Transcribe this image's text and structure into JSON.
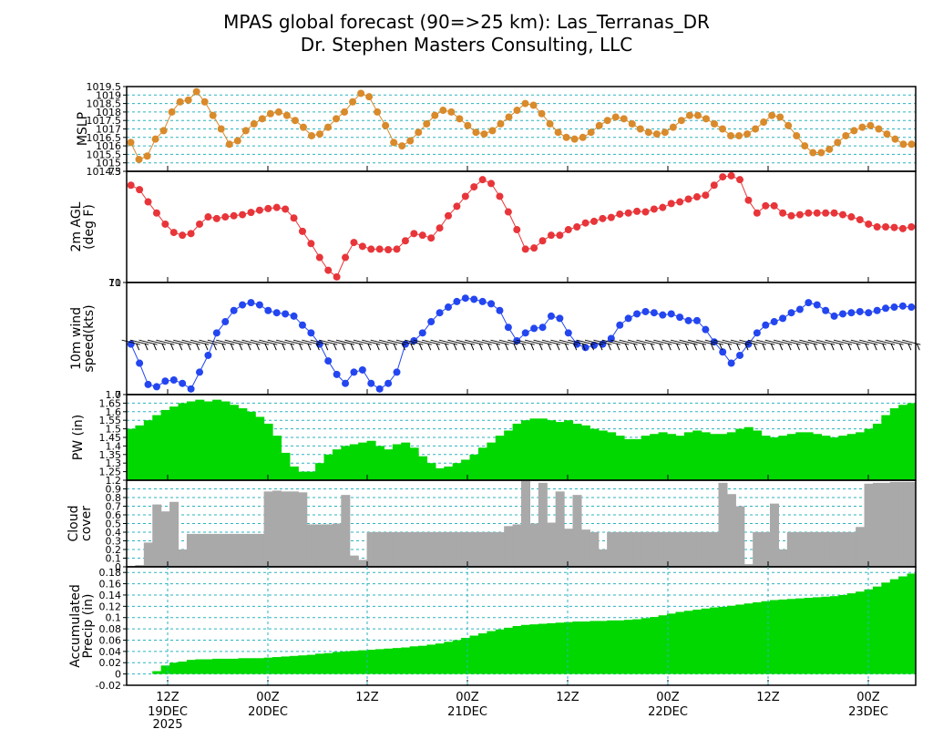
{
  "title": {
    "line1": "MPAS global forecast (90=>25 km): Las_Terranas_DR",
    "line2": "Dr. Stephen Masters Consulting, LLC"
  },
  "time_axis": {
    "ticks": [
      {
        "label": "12Z",
        "sub": "19DEC",
        "sub2": "2025",
        "x": 184
      },
      {
        "label": "00Z",
        "sub": "20DEC",
        "sub2": "",
        "x": 294
      },
      {
        "label": "12Z",
        "sub": "",
        "sub2": "",
        "x": 403
      },
      {
        "label": "00Z",
        "sub": "21DEC",
        "sub2": "",
        "x": 513
      },
      {
        "label": "12Z",
        "sub": "",
        "sub2": "",
        "x": 623
      },
      {
        "label": "00Z",
        "sub": "22DEC",
        "sub2": "",
        "x": 733
      },
      {
        "label": "12Z",
        "sub": "",
        "sub2": "",
        "x": 843
      },
      {
        "label": "00Z",
        "sub": "23DEC",
        "sub2": "",
        "x": 953
      }
    ]
  },
  "colors": {
    "mslp": "#d98a2b",
    "temp": "#e8353a",
    "wind": "#2346f0",
    "pw_fill": "#00d800",
    "cloud_fill": "#a9a9a9",
    "precip_fill": "#00d800",
    "grid": "#2bb3c0"
  },
  "chart_data": [
    {
      "type": "line",
      "panel": "mslp",
      "ylabel": "MSLP",
      "ylim": [
        1014.5,
        1019.5
      ],
      "yticks": [
        "1014.5",
        "1015",
        "1015.5",
        "1016",
        "1016.5",
        "1017",
        "1017.5",
        "1018",
        "1018.5",
        "1019",
        "1019.5"
      ],
      "x_hours": [
        0,
        3,
        6,
        9,
        12,
        15,
        18,
        21,
        24,
        27,
        30,
        33,
        36,
        39,
        42,
        45,
        48,
        51,
        54,
        57,
        60,
        63,
        66,
        69,
        72,
        75,
        78,
        81,
        84,
        87,
        90,
        93,
        96,
        99,
        102,
        105,
        108,
        111,
        114,
        117,
        120,
        123,
        126,
        129,
        132,
        135,
        138,
        141,
        144,
        147,
        150,
        153,
        156,
        159,
        162,
        165,
        168,
        171,
        174,
        177,
        180,
        183,
        186,
        189,
        192,
        195,
        198,
        201,
        204,
        207,
        210,
        213,
        216,
        219,
        222,
        225,
        228,
        231,
        234,
        237,
        240,
        243,
        246,
        249,
        252,
        255,
        258,
        261,
        264,
        267,
        270,
        273,
        276,
        279,
        282,
        285
      ],
      "values": [
        1016.2,
        1015.2,
        1015.4,
        1016.4,
        1016.9,
        1018.0,
        1018.6,
        1018.7,
        1019.2,
        1018.6,
        1017.8,
        1017.0,
        1016.1,
        1016.3,
        1016.9,
        1017.3,
        1017.6,
        1017.9,
        1018.0,
        1017.8,
        1017.5,
        1017.1,
        1016.6,
        1016.7,
        1017.1,
        1017.6,
        1018.0,
        1018.6,
        1019.1,
        1018.9,
        1018.0,
        1017.2,
        1016.2,
        1016.0,
        1016.3,
        1016.8,
        1017.3,
        1017.8,
        1018.1,
        1018.0,
        1017.6,
        1017.2,
        1016.8,
        1016.7,
        1016.9,
        1017.3,
        1017.7,
        1018.1,
        1018.5,
        1018.4,
        1017.9,
        1017.3,
        1016.8,
        1016.5,
        1016.4,
        1016.5,
        1016.8,
        1017.2,
        1017.5,
        1017.7,
        1017.6,
        1017.3,
        1017.0,
        1016.8,
        1016.7,
        1016.8,
        1017.1,
        1017.5,
        1017.8,
        1017.8,
        1017.6,
        1017.3,
        1017.0,
        1016.6,
        1016.6,
        1016.7,
        1017.0,
        1017.4,
        1017.8,
        1017.7,
        1017.2,
        1016.6,
        1016.0,
        1015.6,
        1015.6,
        1015.8,
        1016.2,
        1016.6,
        1016.9,
        1017.1,
        1017.2,
        1017.0,
        1016.7,
        1016.4,
        1016.1,
        1016.1
      ]
    },
    {
      "type": "line",
      "panel": "temperature",
      "ylabel": "2m AGL (deg F)",
      "ylim": [
        71,
        73
      ],
      "yticks": [
        "71",
        "73"
      ],
      "values": [
        72.75,
        72.67,
        72.45,
        72.25,
        72.05,
        71.9,
        71.85,
        71.88,
        72.05,
        72.18,
        72.15,
        72.18,
        72.2,
        72.22,
        72.26,
        72.3,
        72.33,
        72.35,
        72.32,
        72.16,
        71.92,
        71.7,
        71.45,
        71.22,
        71.1,
        71.45,
        71.72,
        71.65,
        71.6,
        71.6,
        71.59,
        71.6,
        71.75,
        71.88,
        71.85,
        71.8,
        71.98,
        72.2,
        72.37,
        72.55,
        72.72,
        72.85,
        72.78,
        72.55,
        72.27,
        71.95,
        71.6,
        71.62,
        71.75,
        71.85,
        71.85,
        71.95,
        72.0,
        72.07,
        72.1,
        72.15,
        72.17,
        72.23,
        72.25,
        72.28,
        72.27,
        72.32,
        72.35,
        72.42,
        72.45,
        72.5,
        72.54,
        72.57,
        72.75,
        72.9,
        72.92,
        72.85,
        72.48,
        72.25,
        72.38,
        72.38,
        72.25,
        72.2,
        72.22,
        72.25,
        72.25,
        72.25,
        72.25,
        72.22,
        72.18,
        72.13,
        72.05,
        72.0,
        72.0,
        71.99,
        71.97,
        72.0
      ]
    },
    {
      "type": "line",
      "panel": "wind",
      "ylabel": "10m wind speed(kts)",
      "ylim": [
        0,
        10
      ],
      "yticks": [
        "0",
        "10"
      ],
      "values": [
        4.5,
        2.8,
        0.9,
        0.7,
        1.2,
        1.3,
        1.0,
        0.5,
        2.0,
        3.5,
        5.5,
        6.5,
        7.5,
        8.0,
        8.2,
        8.0,
        7.5,
        7.3,
        7.2,
        7.0,
        6.2,
        5.5,
        4.5,
        3.0,
        1.8,
        1.0,
        2.0,
        2.2,
        1.0,
        0.5,
        1.0,
        2.0,
        4.5,
        4.8,
        5.5,
        6.5,
        7.3,
        7.8,
        8.3,
        8.6,
        8.5,
        8.3,
        8.1,
        7.5,
        6.0,
        4.8,
        5.5,
        5.9,
        6.0,
        7.0,
        6.8,
        5.5,
        4.5,
        4.2,
        4.4,
        4.5,
        5.0,
        6.2,
        6.8,
        7.2,
        7.4,
        7.3,
        7.1,
        7.2,
        6.9,
        6.6,
        6.6,
        5.8,
        4.7,
        3.8,
        2.8,
        3.5,
        4.5,
        5.5,
        6.2,
        6.5,
        6.8,
        7.3,
        7.6,
        8.2,
        8.0,
        7.5,
        7.0,
        7.2,
        7.3,
        7.4,
        7.3,
        7.5,
        7.7,
        7.8,
        7.9,
        7.8
      ]
    },
    {
      "type": "area",
      "panel": "pw",
      "ylabel": "PW (in)",
      "ylim": [
        1.2,
        1.7
      ],
      "yticks": [
        "1.2",
        "1.25",
        "1.3",
        "1.35",
        "1.4",
        "1.45",
        "1.5",
        "1.55",
        "1.6",
        "1.65",
        "1.7"
      ],
      "values": [
        1.5,
        1.52,
        1.55,
        1.58,
        1.61,
        1.63,
        1.65,
        1.66,
        1.67,
        1.66,
        1.67,
        1.66,
        1.64,
        1.62,
        1.6,
        1.57,
        1.53,
        1.46,
        1.36,
        1.28,
        1.25,
        1.25,
        1.3,
        1.35,
        1.38,
        1.4,
        1.41,
        1.42,
        1.43,
        1.4,
        1.38,
        1.41,
        1.42,
        1.39,
        1.34,
        1.3,
        1.27,
        1.28,
        1.3,
        1.32,
        1.35,
        1.39,
        1.42,
        1.46,
        1.49,
        1.53,
        1.55,
        1.56,
        1.56,
        1.55,
        1.54,
        1.55,
        1.53,
        1.52,
        1.5,
        1.49,
        1.48,
        1.46,
        1.44,
        1.44,
        1.46,
        1.47,
        1.48,
        1.47,
        1.46,
        1.48,
        1.49,
        1.48,
        1.47,
        1.47,
        1.48,
        1.5,
        1.51,
        1.49,
        1.46,
        1.45,
        1.46,
        1.47,
        1.48,
        1.48,
        1.47,
        1.46,
        1.45,
        1.46,
        1.47,
        1.48,
        1.5,
        1.53,
        1.58,
        1.62,
        1.64,
        1.65
      ]
    },
    {
      "type": "bar",
      "panel": "cloud",
      "ylabel": "Cloud cover",
      "ylim": [
        0,
        1.0
      ],
      "yticks": [
        "0",
        "0.1",
        "0.2",
        "0.3",
        "0.4",
        "0.5",
        "0.6",
        "0.7",
        "0.8",
        "0.9"
      ],
      "values": [
        0.0,
        0.02,
        0.28,
        0.72,
        0.64,
        0.75,
        0.2,
        0.38,
        0.38,
        0.38,
        0.38,
        0.38,
        0.38,
        0.38,
        0.38,
        0.38,
        0.87,
        0.88,
        0.87,
        0.87,
        0.86,
        0.49,
        0.49,
        0.49,
        0.5,
        0.83,
        0.13,
        0.08,
        0.4,
        0.4,
        0.4,
        0.4,
        0.4,
        0.4,
        0.4,
        0.4,
        0.4,
        0.4,
        0.4,
        0.4,
        0.4,
        0.4,
        0.4,
        0.4,
        0.47,
        0.49,
        0.99,
        0.5,
        0.97,
        0.51,
        0.87,
        0.44,
        0.83,
        0.43,
        0.4,
        0.2,
        0.4,
        0.4,
        0.4,
        0.4,
        0.4,
        0.4,
        0.4,
        0.4,
        0.4,
        0.4,
        0.4,
        0.4,
        0.4,
        0.97,
        0.84,
        0.7,
        0.03,
        0.4,
        0.4,
        0.73,
        0.2,
        0.4,
        0.4,
        0.4,
        0.4,
        0.4,
        0.4,
        0.4,
        0.4,
        0.46,
        0.96,
        0.97,
        0.97,
        0.98,
        0.98,
        0.98
      ]
    },
    {
      "type": "area",
      "panel": "precip",
      "ylabel": "Accumulated Precip (in)",
      "ylim": [
        -0.02,
        0.19
      ],
      "yticks": [
        "-0.02",
        "0",
        "0.02",
        "0.04",
        "0.06",
        "0.08",
        "0.1",
        "0.12",
        "0.14",
        "0.16",
        "0.18"
      ],
      "values": [
        0.0,
        0.0,
        0.0,
        0.005,
        0.015,
        0.02,
        0.022,
        0.025,
        0.026,
        0.026,
        0.027,
        0.027,
        0.027,
        0.028,
        0.028,
        0.028,
        0.029,
        0.03,
        0.031,
        0.032,
        0.033,
        0.034,
        0.036,
        0.037,
        0.039,
        0.04,
        0.041,
        0.042,
        0.043,
        0.044,
        0.045,
        0.046,
        0.047,
        0.049,
        0.05,
        0.052,
        0.054,
        0.057,
        0.06,
        0.064,
        0.068,
        0.072,
        0.076,
        0.079,
        0.082,
        0.085,
        0.087,
        0.088,
        0.089,
        0.09,
        0.091,
        0.092,
        0.093,
        0.093,
        0.094,
        0.094,
        0.095,
        0.095,
        0.096,
        0.097,
        0.099,
        0.101,
        0.104,
        0.107,
        0.11,
        0.112,
        0.114,
        0.116,
        0.118,
        0.119,
        0.121,
        0.123,
        0.125,
        0.127,
        0.129,
        0.131,
        0.132,
        0.133,
        0.134,
        0.135,
        0.136,
        0.137,
        0.138,
        0.14,
        0.143,
        0.146,
        0.15,
        0.155,
        0.162,
        0.168,
        0.173,
        0.178
      ]
    }
  ]
}
